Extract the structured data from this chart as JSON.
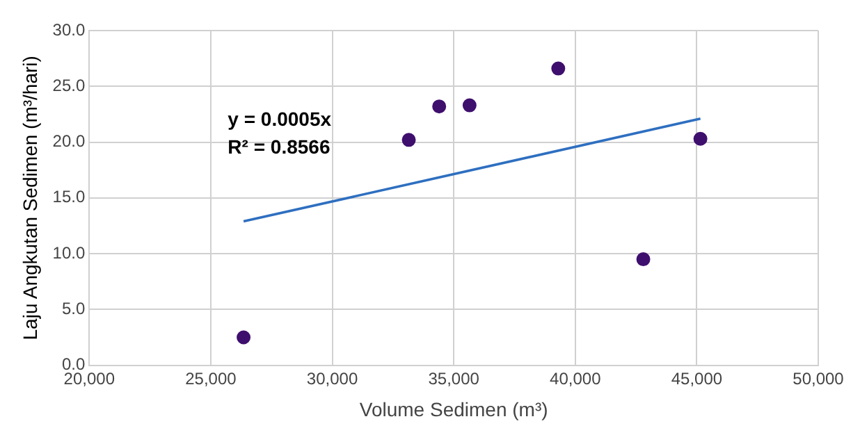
{
  "chart_data": {
    "type": "scatter",
    "xlabel": "Volume Sedimen (m³)",
    "ylabel": "Laju Angkutan Sedimen (m³/hari)",
    "xlim": [
      20000,
      50000
    ],
    "xticks": [
      {
        "value": 20000,
        "label": "20,000"
      },
      {
        "value": 25000,
        "label": "25,000"
      },
      {
        "value": 30000,
        "label": "30,000"
      },
      {
        "value": 35000,
        "label": "35,000"
      },
      {
        "value": 40000,
        "label": "40,000"
      },
      {
        "value": 45000,
        "label": "45,000"
      },
      {
        "value": 50000,
        "label": "50,000"
      }
    ],
    "ylim": [
      0,
      30
    ],
    "yticks": [
      {
        "value": 0,
        "label": "0.0"
      },
      {
        "value": 5,
        "label": "5.0"
      },
      {
        "value": 10,
        "label": "10.0"
      },
      {
        "value": 15,
        "label": "15.0"
      },
      {
        "value": 20,
        "label": "20.0"
      },
      {
        "value": 25,
        "label": "25.0"
      },
      {
        "value": 30,
        "label": "30.0"
      }
    ],
    "grid": true,
    "legend": false,
    "marker": "circle",
    "annotations": [
      "y = 0.0005x\nR² = 0.8566"
    ],
    "series": [
      {
        "type": "scatter",
        "color": "#3f0f6e",
        "x": [
          26350,
          33150,
          34400,
          35650,
          39300,
          42800,
          45150
        ],
        "values": [
          2.5,
          20.2,
          23.2,
          23.3,
          26.6,
          9.5,
          20.3
        ]
      },
      {
        "type": "line",
        "color": "#2e6fc0",
        "line_style": "solid",
        "marker": "none",
        "x": [
          26350,
          45150
        ],
        "values": [
          12.9,
          22.1
        ]
      }
    ]
  }
}
